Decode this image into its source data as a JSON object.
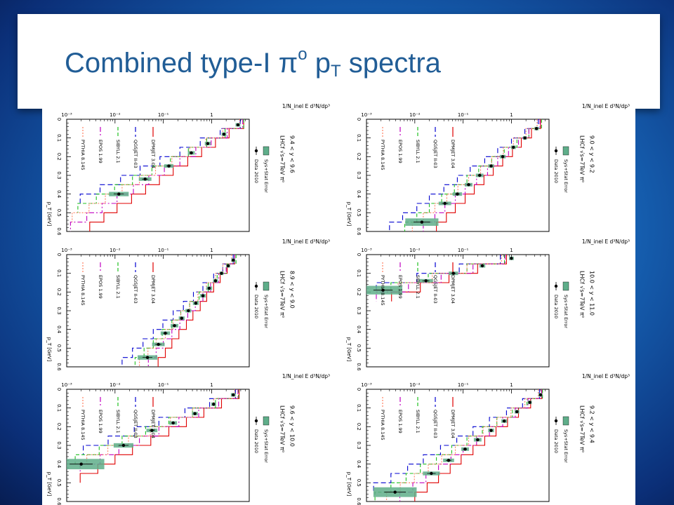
{
  "title": {
    "prefix": "Combined type-I ",
    "pi": "π",
    "pi_sup": "o",
    "p": "p",
    "p_sub": "T",
    "suffix": " spectra"
  },
  "axes": {
    "x_tick_labels": [
      "0",
      "0.1",
      "0.2",
      "0.3",
      "0.4",
      "0.5",
      "0.6"
    ],
    "x_ticks": [
      0,
      0.1,
      0.2,
      0.3,
      0.4,
      0.5,
      0.6
    ],
    "y_tick_labels": [
      "10⁻³",
      "10⁻²",
      "10⁻¹",
      "1"
    ],
    "y_ticks": [
      0.001,
      0.01,
      0.1,
      1
    ],
    "xlabel": "p_T [GeV]",
    "ylabel": "1/N_inel E d³N/dp³",
    "xlim": [
      0,
      0.6
    ],
    "ylim": [
      0.001,
      6
    ],
    "ylog": true
  },
  "series_style": [
    {
      "name": "DPMJET 3.04",
      "color": "#e00000"
    },
    {
      "name": "QGSJET II-03",
      "color": "#0000d0"
    },
    {
      "name": "SIBYLL 2.1",
      "color": "#20c020"
    },
    {
      "name": "EPOS 1.99",
      "color": "#c000c0"
    },
    {
      "name": "PYTHIA 8.145",
      "color": "#ff7f60"
    }
  ],
  "data_color": "#000000",
  "error_color": "#5fae8a",
  "chart_data": [
    {
      "type": "line",
      "header": "LHCf √s=7TeV π⁰",
      "label": "9.4 < y < 9.6",
      "data_name": "Data 2010",
      "error_name": "Sys+Stat Error",
      "x": [
        0.025,
        0.075,
        0.125,
        0.175,
        0.225,
        0.275,
        0.325,
        0.375,
        0.425,
        0.475,
        0.525,
        0.575
      ],
      "series": [
        {
          "name": "DPMJET 3.04",
          "values": [
            4.6,
            2.3,
            1.2,
            0.62,
            0.32,
            0.16,
            0.083,
            0.043,
            0.022,
            0.011,
            0.0059,
            0.003
          ]
        },
        {
          "name": "QGSJET II-03",
          "values": [
            3.9,
            1.5,
            0.58,
            0.22,
            0.085,
            0.033,
            0.013,
            0.0049,
            0.0019,
            null,
            null,
            null
          ]
        },
        {
          "name": "SIBYLL 2.1",
          "values": [
            4.6,
            1.9,
            0.79,
            0.33,
            0.14,
            0.058,
            0.023,
            0.0098,
            0.0041,
            0.0017,
            null,
            null
          ]
        },
        {
          "name": "EPOS 1.99",
          "values": [
            4.4,
            2.1,
            0.98,
            0.47,
            0.22,
            0.105,
            0.05,
            0.024,
            0.011,
            0.0054,
            0.0026,
            0.0012
          ]
        },
        {
          "name": "PYTHIA 8.145",
          "values": [
            3.8,
            1.7,
            0.76,
            0.35,
            0.15,
            0.069,
            0.032,
            0.014,
            0.0063,
            0.0029,
            0.0013,
            null
          ]
        }
      ],
      "points": [
        [
          0.03,
          3.5,
          0.12
        ],
        [
          0.08,
          1.8,
          0.12
        ],
        [
          0.13,
          0.83,
          0.15
        ],
        [
          0.18,
          0.38,
          0.18
        ],
        [
          0.25,
          0.13,
          0.25
        ],
        [
          0.32,
          0.042,
          0.35
        ],
        [
          0.4,
          0.012,
          0.6
        ]
      ]
    },
    {
      "type": "line",
      "header": "LHCf √s=7TeV π⁰",
      "label": "8.9 < y < 9.0",
      "data_name": "Data 2010",
      "error_name": "Sys+Stat Error",
      "x": [
        0.025,
        0.075,
        0.125,
        0.175,
        0.225,
        0.275,
        0.325,
        0.375,
        0.425,
        0.475,
        0.525,
        0.575
      ],
      "series": [
        {
          "name": "DPMJET 3.04",
          "values": [
            3.0,
            2.1,
            1.5,
            1.1,
            0.79,
            0.58,
            0.41,
            0.3,
            0.21,
            0.15,
            0.11,
            0.078
          ]
        },
        {
          "name": "QGSJET II-03",
          "values": [
            2.8,
            1.7,
            1.1,
            0.66,
            0.42,
            0.26,
            0.16,
            0.098,
            0.062,
            0.038,
            0.023,
            0.014
          ]
        },
        {
          "name": "SIBYLL 2.1",
          "values": [
            3.2,
            2.0,
            1.3,
            0.85,
            0.55,
            0.35,
            0.23,
            0.15,
            0.095,
            0.062,
            0.04,
            0.026
          ]
        },
        {
          "name": "EPOS 1.99",
          "values": [
            3.0,
            2.0,
            1.4,
            0.95,
            0.66,
            0.46,
            0.32,
            0.22,
            0.15,
            0.1,
            0.071,
            0.049
          ]
        },
        {
          "name": "PYTHIA 8.145",
          "values": [
            2.6,
            1.7,
            1.2,
            0.78,
            0.52,
            0.35,
            0.23,
            0.16,
            0.11,
            0.071,
            0.048,
            0.032
          ]
        }
      ],
      "points": [
        [
          0.03,
          2.8,
          0.1
        ],
        [
          0.06,
          2.2,
          0.1
        ],
        [
          0.1,
          1.6,
          0.1
        ],
        [
          0.14,
          1.2,
          0.12
        ],
        [
          0.18,
          0.89,
          0.15
        ],
        [
          0.22,
          0.66,
          0.15
        ],
        [
          0.26,
          0.47,
          0.15
        ],
        [
          0.3,
          0.33,
          0.15
        ],
        [
          0.34,
          0.24,
          0.15
        ],
        [
          0.38,
          0.17,
          0.2
        ],
        [
          0.42,
          0.11,
          0.25
        ],
        [
          0.48,
          0.079,
          0.35
        ],
        [
          0.55,
          0.047,
          0.6
        ]
      ]
    },
    {
      "type": "line",
      "header": "LHCf √s=7TeV π⁰",
      "label": "9.6 < y < 10.0",
      "data_name": "Data 2010",
      "error_name": "Sys+Stat Error",
      "x": [
        0.025,
        0.075,
        0.125,
        0.175,
        0.225,
        0.275,
        0.325,
        0.375,
        0.425,
        0.475,
        0.525,
        0.575
      ],
      "series": [
        {
          "name": "DPMJET 3.04",
          "values": [
            3.7,
            1.6,
            0.69,
            0.3,
            0.13,
            0.055,
            0.023,
            0.01,
            0.0044,
            0.0019,
            null,
            null
          ]
        },
        {
          "name": "QGSJET II-03",
          "values": [
            3.1,
            0.91,
            0.28,
            0.081,
            0.025,
            0.0072,
            0.0022,
            null,
            null,
            null,
            null,
            null
          ]
        },
        {
          "name": "SIBYLL 2.1",
          "values": [
            3.6,
            1.2,
            0.4,
            0.13,
            0.043,
            0.014,
            0.0047,
            0.0015,
            null,
            null,
            null,
            null
          ]
        },
        {
          "name": "EPOS 1.99",
          "values": [
            3.5,
            1.4,
            0.54,
            0.21,
            0.081,
            0.032,
            0.012,
            0.0049,
            0.0019,
            null,
            null,
            null
          ]
        },
        {
          "name": "PYTHIA 8.145",
          "values": [
            3.0,
            1.1,
            0.4,
            0.14,
            0.054,
            0.019,
            0.0071,
            0.0026,
            null,
            null,
            null,
            null
          ]
        }
      ],
      "points": [
        [
          0.03,
          2.8,
          0.12
        ],
        [
          0.08,
          1.1,
          0.12
        ],
        [
          0.13,
          0.45,
          0.15
        ],
        [
          0.18,
          0.16,
          0.2
        ],
        [
          0.22,
          0.058,
          0.3
        ],
        [
          0.3,
          0.015,
          0.6
        ],
        [
          0.4,
          0.002,
          2.0
        ]
      ]
    },
    {
      "type": "line",
      "header": "LHCf √s=7TeV π⁰",
      "label": "9.0 < y < 9.2",
      "data_name": "Data 2010",
      "error_name": "Sys+Stat Error",
      "x": [
        0.025,
        0.075,
        0.125,
        0.175,
        0.225,
        0.275,
        0.325,
        0.375,
        0.425,
        0.475,
        0.525,
        0.575
      ],
      "series": [
        {
          "name": "DPMJET 3.04",
          "values": [
            4.0,
            2.6,
            1.6,
            1.05,
            0.66,
            0.42,
            0.27,
            0.17,
            0.11,
            0.069,
            0.045,
            0.028
          ]
        },
        {
          "name": "QGSJET II-03",
          "values": [
            3.6,
            1.9,
            1.0,
            0.52,
            0.28,
            0.14,
            0.076,
            0.04,
            0.02,
            0.011,
            0.0056,
            0.003
          ]
        },
        {
          "name": "SIBYLL 2.1",
          "values": [
            4.2,
            2.3,
            1.3,
            0.71,
            0.39,
            0.21,
            0.12,
            0.066,
            0.036,
            0.02,
            0.011,
            0.0062
          ]
        },
        {
          "name": "EPOS 1.99",
          "values": [
            3.9,
            2.3,
            1.4,
            0.87,
            0.52,
            0.32,
            0.19,
            0.11,
            0.069,
            0.042,
            0.026,
            0.015
          ]
        },
        {
          "name": "PYTHIA 8.145",
          "values": [
            3.4,
            2.0,
            1.1,
            0.68,
            0.39,
            0.23,
            0.13,
            0.078,
            0.046,
            0.026,
            0.015,
            0.0089
          ]
        }
      ],
      "points": [
        [
          0.05,
          3.3,
          0.1
        ],
        [
          0.1,
          1.9,
          0.1
        ],
        [
          0.15,
          1.1,
          0.12
        ],
        [
          0.2,
          0.66,
          0.15
        ],
        [
          0.25,
          0.38,
          0.15
        ],
        [
          0.3,
          0.22,
          0.2
        ],
        [
          0.35,
          0.13,
          0.2
        ],
        [
          0.4,
          0.076,
          0.25
        ],
        [
          0.45,
          0.042,
          0.35
        ],
        [
          0.55,
          0.014,
          1.2
        ]
      ]
    },
    {
      "type": "line",
      "header": "LHCf √s=7TeV π⁰",
      "label": "10.0 < y < 11.0",
      "data_name": "Data 2010",
      "error_name": "Sys+Stat Error",
      "x": [
        0.025,
        0.075,
        0.125,
        0.175,
        0.225,
        0.275,
        0.325,
        0.375,
        0.425,
        0.475,
        0.525,
        0.575
      ],
      "series": [
        {
          "name": "DPMJET 3.04",
          "values": [
            0.79,
            0.2,
            0.051,
            0.013,
            0.0033,
            null,
            null,
            null,
            null,
            null,
            null,
            null
          ]
        },
        {
          "name": "QGSJET II-03",
          "values": [
            0.59,
            0.083,
            0.011,
            0.0016,
            null,
            null,
            null,
            null,
            null,
            null,
            null,
            null
          ]
        },
        {
          "name": "SIBYLL 2.1",
          "values": [
            0.72,
            0.12,
            0.019,
            0.0032,
            null,
            null,
            null,
            null,
            null,
            null,
            null,
            null
          ]
        },
        {
          "name": "EPOS 1.99",
          "values": [
            0.74,
            0.16,
            0.035,
            0.0074,
            0.0016,
            null,
            null,
            null,
            null,
            null,
            null,
            null
          ]
        },
        {
          "name": "PYTHIA 8.145",
          "values": [
            0.62,
            0.12,
            0.023,
            0.0045,
            null,
            null,
            null,
            null,
            null,
            null,
            null,
            null
          ]
        }
      ],
      "points": [
        [
          0.02,
          1.0,
          0.12
        ],
        [
          0.06,
          0.25,
          0.15
        ],
        [
          0.1,
          0.063,
          0.25
        ],
        [
          0.14,
          0.017,
          0.4
        ],
        [
          0.19,
          0.0022,
          1.5
        ]
      ]
    },
    {
      "type": "line",
      "header": "LHCf √s=7TeV π⁰",
      "label": "9.2 < y < 9.4",
      "data_name": "Data 2010",
      "error_name": "Sys+Stat Error",
      "x": [
        0.025,
        0.075,
        0.125,
        0.175,
        0.225,
        0.275,
        0.325,
        0.375,
        0.425,
        0.475,
        0.525,
        0.575
      ],
      "series": [
        {
          "name": "DPMJET 3.04",
          "values": [
            4.3,
            2.5,
            1.4,
            0.83,
            0.48,
            0.28,
            0.16,
            0.091,
            0.054,
            0.031,
            0.018,
            0.01
          ]
        },
        {
          "name": "QGSJET II-03",
          "values": [
            3.8,
            1.7,
            0.79,
            0.35,
            0.16,
            0.074,
            0.034,
            0.015,
            0.0071,
            0.0032,
            0.0014,
            null
          ]
        },
        {
          "name": "SIBYLL 2.1",
          "values": [
            4.4,
            2.1,
            1.05,
            0.5,
            0.25,
            0.12,
            0.058,
            0.028,
            0.013,
            0.0066,
            0.0032,
            0.0015
          ]
        },
        {
          "name": "EPOS 1.99",
          "values": [
            4.2,
            2.2,
            1.2,
            0.66,
            0.35,
            0.19,
            0.1,
            0.056,
            0.031,
            0.017,
            0.0091,
            0.0049
          ]
        },
        {
          "name": "PYTHIA 8.145",
          "values": [
            3.6,
            1.9,
            0.98,
            0.5,
            0.26,
            0.13,
            0.069,
            0.036,
            0.019,
            0.0098,
            0.005,
            0.0026
          ]
        }
      ],
      "points": [
        [
          0.03,
          4.0,
          0.1
        ],
        [
          0.07,
          2.4,
          0.1
        ],
        [
          0.12,
          1.3,
          0.12
        ],
        [
          0.17,
          0.71,
          0.15
        ],
        [
          0.22,
          0.38,
          0.15
        ],
        [
          0.27,
          0.2,
          0.2
        ],
        [
          0.32,
          0.11,
          0.2
        ],
        [
          0.38,
          0.05,
          0.3
        ],
        [
          0.45,
          0.022,
          0.5
        ],
        [
          0.55,
          0.0039,
          1.8
        ]
      ]
    }
  ]
}
